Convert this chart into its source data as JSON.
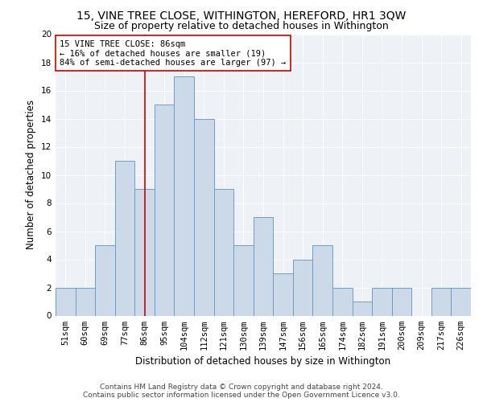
{
  "title": "15, VINE TREE CLOSE, WITHINGTON, HEREFORD, HR1 3QW",
  "subtitle": "Size of property relative to detached houses in Withington",
  "xlabel": "Distribution of detached houses by size in Withington",
  "ylabel": "Number of detached properties",
  "categories": [
    "51sqm",
    "60sqm",
    "69sqm",
    "77sqm",
    "86sqm",
    "95sqm",
    "104sqm",
    "112sqm",
    "121sqm",
    "130sqm",
    "139sqm",
    "147sqm",
    "156sqm",
    "165sqm",
    "174sqm",
    "182sqm",
    "191sqm",
    "200sqm",
    "209sqm",
    "217sqm",
    "226sqm"
  ],
  "values": [
    2,
    2,
    5,
    11,
    9,
    15,
    17,
    14,
    9,
    5,
    7,
    3,
    4,
    5,
    2,
    1,
    2,
    2,
    0,
    2,
    2
  ],
  "bar_color": "#ccd9e8",
  "bar_edge_color": "#6b9fc8",
  "vline_index": 4,
  "vline_color": "#cc0000",
  "annotation_text": "15 VINE TREE CLOSE: 86sqm\n← 16% of detached houses are smaller (19)\n84% of semi-detached houses are larger (97) →",
  "annotation_box_color": "#ffffff",
  "annotation_box_edge": "#cc0000",
  "ylim": [
    0,
    20
  ],
  "yticks": [
    0,
    2,
    4,
    6,
    8,
    10,
    12,
    14,
    16,
    18,
    20
  ],
  "footer": "Contains HM Land Registry data © Crown copyright and database right 2024.\nContains public sector information licensed under the Open Government Licence v3.0.",
  "bg_color": "#eef2f7",
  "title_fontsize": 10,
  "subtitle_fontsize": 9,
  "xlabel_fontsize": 8.5,
  "ylabel_fontsize": 8.5,
  "tick_fontsize": 7.5,
  "footer_fontsize": 6.5,
  "annot_fontsize": 7.5
}
